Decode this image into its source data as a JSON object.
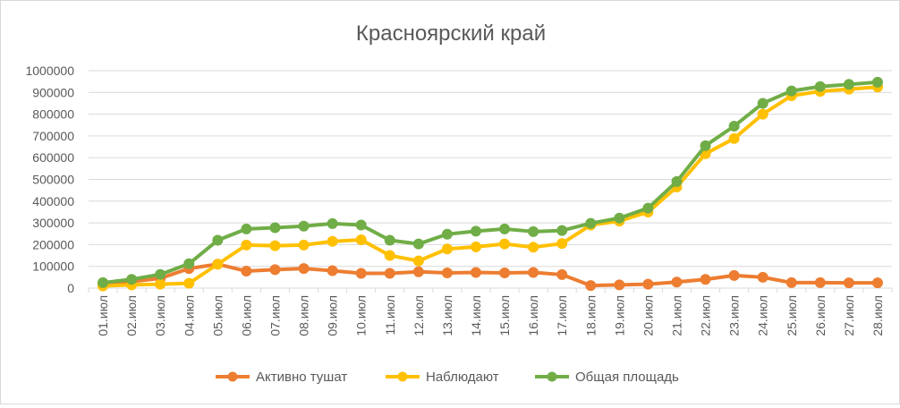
{
  "chart_data": {
    "type": "line",
    "title": "Красноярский край",
    "xlabel": "",
    "ylabel": "",
    "ylim": [
      0,
      1000000
    ],
    "yticks": [
      "0",
      "100000",
      "200000",
      "300000",
      "400000",
      "500000",
      "600000",
      "700000",
      "800000",
      "900000",
      "1000000"
    ],
    "grid": true,
    "legend_position": "bottom",
    "categories": [
      "01.июл",
      "02.июл",
      "03.июл",
      "04.июл",
      "05.июл",
      "06.июл",
      "07.июл",
      "08.июл",
      "09.июл",
      "10.июл",
      "11.июл",
      "12.июл",
      "13.июл",
      "14.июл",
      "15.июл",
      "16.июл",
      "17.июл",
      "18.июл",
      "19.июл",
      "20.июл",
      "21.июл",
      "22.июл",
      "23.июл",
      "24.июл",
      "25.июл",
      "26.июл",
      "27.июл",
      "28.июл"
    ],
    "series": [
      {
        "name": "Активно тушат",
        "color": "#ED7D31",
        "values": [
          20000,
          30000,
          45000,
          90000,
          110000,
          78000,
          85000,
          90000,
          80000,
          68000,
          68000,
          75000,
          70000,
          72000,
          70000,
          72000,
          62000,
          12000,
          15000,
          18000,
          28000,
          40000,
          58000,
          50000,
          25000,
          25000,
          24000,
          24000
        ]
      },
      {
        "name": "Наблюдают",
        "color": "#FFC000",
        "values": [
          10000,
          15000,
          18000,
          22000,
          110000,
          198000,
          195000,
          198000,
          215000,
          222000,
          150000,
          125000,
          180000,
          190000,
          203000,
          188000,
          205000,
          290000,
          308000,
          350000,
          465000,
          618000,
          688000,
          800000,
          885000,
          905000,
          915000,
          925000
        ]
      },
      {
        "name": "Общая площадь",
        "color": "#70AD47",
        "values": [
          25000,
          40000,
          63000,
          112000,
          220000,
          272000,
          278000,
          285000,
          297000,
          290000,
          220000,
          203000,
          248000,
          262000,
          272000,
          260000,
          265000,
          298000,
          322000,
          368000,
          490000,
          655000,
          745000,
          850000,
          907000,
          927000,
          937000,
          947000
        ]
      }
    ]
  }
}
